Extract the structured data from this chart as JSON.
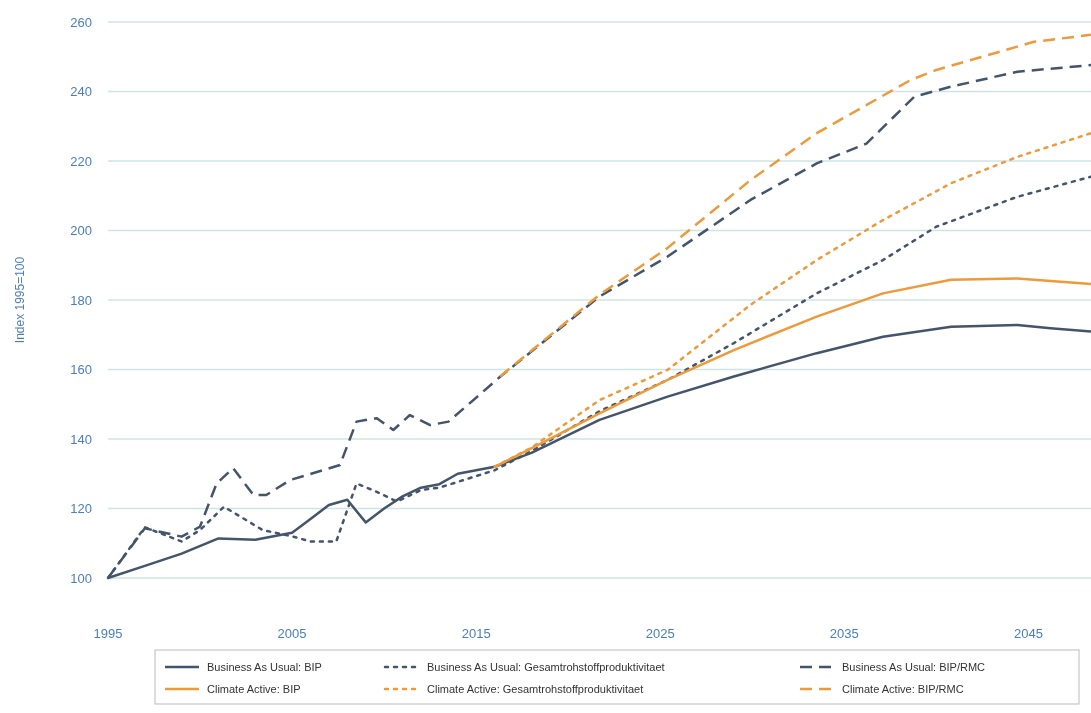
{
  "chart_data": {
    "type": "line",
    "ylabel": "Index 1995=100",
    "xlim": [
      1995,
      2048.4
    ],
    "xticks": [
      1995,
      2005,
      2015,
      2025,
      2035,
      2045
    ],
    "ylim": [
      100,
      260
    ],
    "yticks": [
      100,
      120,
      140,
      160,
      180,
      200,
      220,
      240,
      260
    ],
    "grid": "y",
    "legend": "bottom",
    "marker": "none",
    "series": [
      {
        "name": "Business As Usual: BIP",
        "color": "#44546a",
        "line_style": "solid",
        "x": [
          1995,
          1997,
          1999,
          2001,
          2003,
          2005,
          2006,
          2007,
          2008,
          2009,
          2010,
          2011,
          2012,
          2013,
          2014,
          2015,
          2016,
          2018,
          2021.7,
          2025.4,
          2029,
          2033.5,
          2037.1,
          2040.8,
          2044.4,
          2046.2,
          2048.4
        ],
        "values": [
          100,
          103.5,
          107,
          111.4,
          111,
          113,
          117,
          121,
          122.5,
          116,
          120,
          123.5,
          126,
          127,
          130,
          131,
          132,
          136,
          145.5,
          152.2,
          158,
          164.7,
          169.4,
          172.3,
          172.8,
          171.9,
          170.9
        ]
      },
      {
        "name": "Business As Usual: Gesamtrohstoffproduktivitaet",
        "color": "#44546a",
        "line_style": "dotted",
        "x": [
          1995,
          1997,
          1999,
          2000,
          2001.3,
          2003.4,
          2005,
          2006,
          2007.4,
          2008.5,
          2009.6,
          2010.7,
          2012,
          2013,
          2016,
          2018,
          2021.7,
          2025.4,
          2029,
          2033.5,
          2037.1,
          2040,
          2044.4,
          2048.4
        ],
        "values": [
          100,
          114.6,
          110.5,
          113.8,
          120.5,
          113.8,
          112,
          110.5,
          110.5,
          127.2,
          124.8,
          122,
          125.3,
          126,
          131,
          136.5,
          148,
          157,
          167.6,
          181.9,
          191.5,
          201.1,
          209.7,
          215.5
        ]
      },
      {
        "name": "Business As Usual: BIP/RMC",
        "color": "#44546a",
        "line_style": "dashed",
        "x": [
          1995,
          1997,
          1999,
          2000,
          2000.9,
          2001.8,
          2002.9,
          2003.6,
          2004.9,
          2007.6,
          2008.5,
          2009.6,
          2010.5,
          2011.4,
          2012.5,
          2013.5,
          2016.3,
          2021.7,
          2025.4,
          2029.9,
          2033.5,
          2036.2,
          2038.8,
          2040.8,
          2044.4,
          2048.4
        ],
        "values": [
          100,
          114.3,
          111.9,
          114.8,
          127.2,
          131.6,
          123.9,
          123.9,
          128.2,
          132.5,
          145,
          146,
          142.6,
          146.9,
          144,
          145,
          157.9,
          181,
          192.5,
          208.8,
          219.3,
          225,
          238.5,
          241.4,
          245.7,
          247.6
        ]
      },
      {
        "name": "Climate Active: BIP",
        "color": "#ed9a3a",
        "line_style": "solid",
        "x": [
          2016,
          2018,
          2021.7,
          2025.4,
          2029,
          2033.5,
          2037.1,
          2040.8,
          2044.4,
          2048.4
        ],
        "values": [
          132,
          137.3,
          147.4,
          157,
          165.6,
          175.2,
          181.9,
          185.8,
          186.2,
          184.6
        ]
      },
      {
        "name": "Climate Active: Gesamtrohstoffproduktivitaet",
        "color": "#ed9a3a",
        "line_style": "dotted",
        "x": [
          2016,
          2018,
          2021.7,
          2025.4,
          2029.9,
          2033.5,
          2037.1,
          2040.8,
          2044.4,
          2048.4
        ],
        "values": [
          132,
          137.5,
          151.2,
          159.9,
          178.6,
          191.5,
          203,
          213.6,
          221.2,
          228
        ]
      },
      {
        "name": "Climate Active: BIP/RMC",
        "color": "#ed9a3a",
        "line_style": "dashed",
        "x": [
          2016.3,
          2021.7,
          2025.4,
          2029.9,
          2033.5,
          2038.6,
          2040,
          2044.4,
          2045.3,
          2048.4
        ],
        "values": [
          158,
          181.5,
          195,
          214.5,
          228,
          243.3,
          246.2,
          252.9,
          254.3,
          256.3
        ]
      }
    ]
  }
}
